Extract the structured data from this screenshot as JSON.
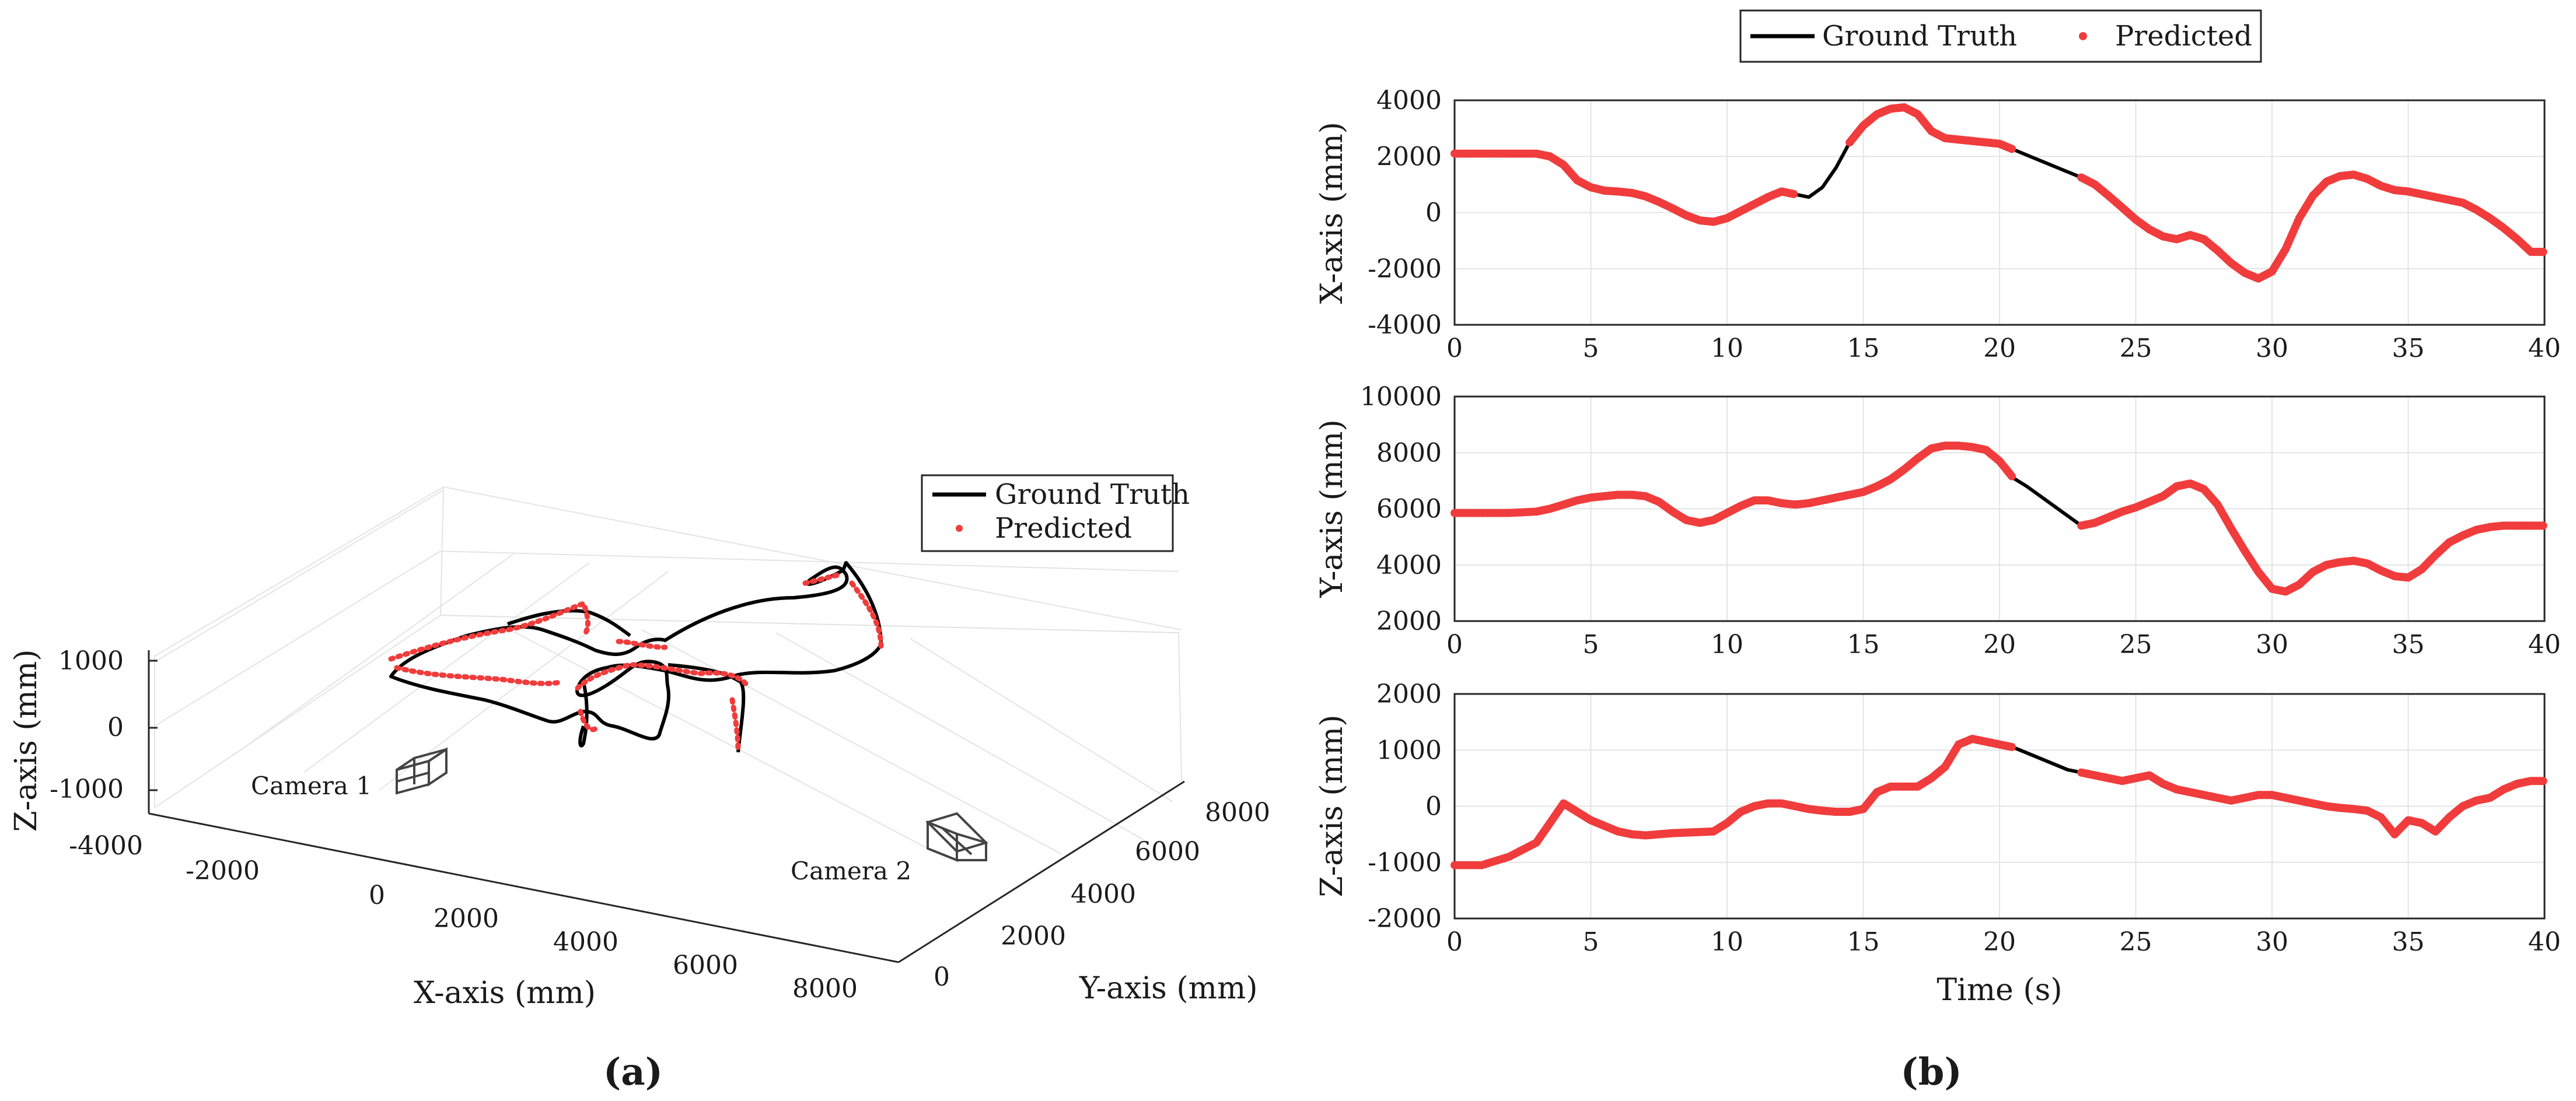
{
  "colors": {
    "ground_truth": "#000000",
    "predicted": "#f03c3c",
    "grid": "#e4e4e4",
    "axis": "#262626",
    "camera": "#444444"
  },
  "chart_data": [
    {
      "panel_label": "(a)",
      "type": "line3d",
      "xlabel": "X-axis (mm)",
      "ylabel": "Y-axis (mm)",
      "zlabel": "Z-axis (mm)",
      "xticks": [
        "-4000",
        "-2000",
        "0",
        "2000",
        "4000",
        "6000",
        "8000"
      ],
      "yticks": [
        "0",
        "2000",
        "4000",
        "6000",
        "8000"
      ],
      "zticks": [
        "1000",
        "0",
        "-1000"
      ],
      "xlim": [
        -4000,
        8000
      ],
      "ylim": [
        0,
        8000
      ],
      "zlim": [
        -1000,
        1000
      ],
      "grid": true,
      "legend": {
        "position": "top-right",
        "entries": [
          "Ground Truth",
          "Predicted"
        ]
      },
      "cameras": [
        {
          "label": "Camera 1"
        },
        {
          "label": "Camera 2"
        }
      ],
      "series": [
        {
          "name": "Ground Truth",
          "style": "line",
          "color": "#000000"
        },
        {
          "name": "Predicted",
          "style": "dots",
          "color": "#f03c3c"
        }
      ]
    },
    {
      "panel_label": "(b)",
      "type": "line",
      "legend": {
        "position": "top",
        "entries": [
          "Ground Truth",
          "Predicted"
        ]
      },
      "xlabel": "Time (s)",
      "xlim": [
        0,
        40
      ],
      "xticks": [
        0,
        5,
        10,
        15,
        20,
        25,
        30,
        35,
        40
      ],
      "grid": true,
      "subplots": [
        {
          "ylabel": "X-axis (mm)",
          "ylim": [
            -4000,
            4000
          ],
          "yticks": [
            4000,
            2000,
            0,
            -2000,
            -4000
          ],
          "t": [
            0,
            1,
            2,
            3,
            3.5,
            4,
            4.5,
            5,
            5.5,
            6,
            6.5,
            7,
            7.5,
            8,
            8.5,
            9,
            9.5,
            10,
            10.5,
            11,
            11.5,
            12,
            12.5,
            13,
            13.5,
            14,
            14.5,
            15,
            15.5,
            16,
            16.5,
            17,
            17.5,
            18,
            18.5,
            19,
            19.5,
            20,
            20.5,
            21,
            21.5,
            22,
            22.5,
            23,
            23.5,
            24,
            24.5,
            25,
            25.5,
            26,
            26.5,
            27,
            27.5,
            28,
            28.5,
            29,
            29.5,
            30,
            30.5,
            31,
            31.5,
            32,
            32.5,
            33,
            33.5,
            34,
            34.5,
            35,
            35.5,
            36,
            36.5,
            37,
            37.5,
            38,
            38.5,
            39,
            39.5,
            40
          ],
          "ground_truth": [
            2100,
            2100,
            2100,
            2100,
            2000,
            1700,
            1150,
            900,
            780,
            750,
            700,
            580,
            380,
            150,
            -100,
            -280,
            -330,
            -200,
            50,
            300,
            550,
            750,
            650,
            550,
            900,
            1600,
            2500,
            3100,
            3500,
            3700,
            3750,
            3500,
            2900,
            2650,
            2600,
            2550,
            2500,
            2450,
            2250,
            2050,
            1850,
            1650,
            1450,
            1250,
            1000,
            600,
            180,
            -250,
            -600,
            -850,
            -950,
            -800,
            -950,
            -1350,
            -1800,
            -2150,
            -2350,
            -2100,
            -1300,
            -200,
            600,
            1100,
            1300,
            1350,
            1200,
            950,
            800,
            750,
            650,
            550,
            450,
            350,
            100,
            -200,
            -550,
            -950,
            -1400,
            -1400
          ],
          "predicted_segments": [
            [
              0,
              22
            ],
            [
              26,
              38
            ],
            [
              43,
              78
            ]
          ]
        },
        {
          "ylabel": "Y-axis (mm)",
          "ylim": [
            2000,
            10000
          ],
          "yticks": [
            10000,
            8000,
            6000,
            4000,
            2000
          ],
          "t": [
            0,
            1,
            2,
            3,
            3.5,
            4,
            4.5,
            5,
            5.5,
            6,
            6.5,
            7,
            7.5,
            8,
            8.5,
            9,
            9.5,
            10,
            10.5,
            11,
            11.5,
            12,
            12.5,
            13,
            13.5,
            14,
            14.5,
            15,
            15.5,
            16,
            16.5,
            17,
            17.5,
            18,
            18.5,
            19,
            19.5,
            20,
            20.5,
            21,
            21.5,
            22,
            22.5,
            23,
            23.5,
            24,
            24.5,
            25,
            25.5,
            26,
            26.5,
            27,
            27.5,
            28,
            28.5,
            29,
            29.5,
            30,
            30.5,
            31,
            31.5,
            32,
            32.5,
            33,
            33.5,
            34,
            34.5,
            35,
            35.5,
            36,
            36.5,
            37,
            37.5,
            38,
            38.5,
            39,
            39.5,
            40
          ],
          "ground_truth": [
            5850,
            5850,
            5850,
            5900,
            6000,
            6150,
            6300,
            6400,
            6450,
            6500,
            6500,
            6450,
            6250,
            5900,
            5600,
            5500,
            5600,
            5850,
            6100,
            6300,
            6300,
            6200,
            6150,
            6200,
            6300,
            6400,
            6500,
            6600,
            6800,
            7050,
            7400,
            7800,
            8150,
            8250,
            8250,
            8200,
            8100,
            7700,
            7100,
            6800,
            6450,
            6100,
            5750,
            5400,
            5500,
            5700,
            5900,
            6050,
            6250,
            6450,
            6800,
            6900,
            6700,
            6150,
            5300,
            4500,
            3750,
            3150,
            3050,
            3300,
            3750,
            4000,
            4100,
            4150,
            4050,
            3800,
            3600,
            3550,
            3850,
            4350,
            4800,
            5050,
            5250,
            5350,
            5400,
            5400,
            5400,
            5400
          ],
          "predicted_segments": [
            [
              0,
              38
            ],
            [
              43,
              78
            ]
          ]
        },
        {
          "ylabel": "Z-axis (mm)",
          "ylim": [
            -2000,
            2000
          ],
          "yticks": [
            2000,
            1000,
            0,
            -1000,
            -2000
          ],
          "t": [
            0,
            1,
            2,
            3,
            3.5,
            4,
            4.5,
            5,
            5.5,
            6,
            6.5,
            7,
            7.5,
            8,
            8.5,
            9,
            9.5,
            10,
            10.5,
            11,
            11.5,
            12,
            12.5,
            13,
            13.5,
            14,
            14.5,
            15,
            15.5,
            16,
            16.5,
            17,
            17.5,
            18,
            18.5,
            19,
            19.5,
            20,
            20.5,
            21,
            21.5,
            22,
            22.5,
            23,
            23.5,
            24,
            24.5,
            25,
            25.5,
            26,
            26.5,
            27,
            27.5,
            28,
            28.5,
            29,
            29.5,
            30,
            30.5,
            31,
            31.5,
            32,
            32.5,
            33,
            33.5,
            34,
            34.5,
            35,
            35.5,
            36,
            36.5,
            37,
            37.5,
            38,
            38.5,
            39,
            39.5,
            40
          ],
          "ground_truth": [
            -1050,
            -1050,
            -900,
            -650,
            -300,
            50,
            -100,
            -250,
            -350,
            -450,
            -500,
            -520,
            -500,
            -480,
            -470,
            -460,
            -450,
            -300,
            -100,
            0,
            50,
            50,
            0,
            -50,
            -80,
            -100,
            -100,
            -50,
            250,
            350,
            350,
            350,
            500,
            700,
            1100,
            1200,
            1150,
            1100,
            1050,
            950,
            850,
            750,
            650,
            600,
            550,
            500,
            450,
            500,
            550,
            400,
            300,
            250,
            200,
            150,
            100,
            150,
            200,
            200,
            150,
            100,
            50,
            0,
            -30,
            -50,
            -80,
            -200,
            -500,
            -250,
            -300,
            -450,
            -200,
            0,
            100,
            150,
            300,
            400,
            450,
            450
          ],
          "predicted_segments": [
            [
              0,
              38
            ],
            [
              43,
              78
            ]
          ]
        }
      ]
    }
  ]
}
